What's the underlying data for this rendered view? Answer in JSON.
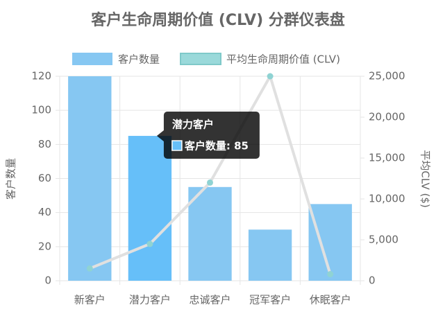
{
  "chart_data": {
    "type": "bar-line",
    "title": "客户生命周期价值 (CLV) 分群仪表盘",
    "categories": [
      "新客户",
      "潜力客户",
      "忠诚客户",
      "冠军客户",
      "休眠客户"
    ],
    "series": [
      {
        "name": "客户数量",
        "type": "bar",
        "color": "#86c7f2",
        "values": [
          120,
          85,
          55,
          30,
          45
        ]
      },
      {
        "name": "平均CLV ($)",
        "legend_name": "平均生命周期价值 (CLV)",
        "type": "line",
        "axis": "y2",
        "color": "#8fd3d3",
        "line_color": "#e0e0e0",
        "values": [
          1500,
          4500,
          12000,
          25000,
          800
        ]
      }
    ],
    "y_label": "客户数量",
    "y2_label": "平均CLV ($)",
    "ylim": [
      0,
      120
    ],
    "yticks": [
      0,
      20,
      40,
      60,
      80,
      100,
      120
    ],
    "y2lim": [
      0,
      25000
    ],
    "y2ticks": [
      0,
      {
        "value": 5000,
        "label": "5,000"
      },
      {
        "value": 10000,
        "label": "10,000"
      },
      {
        "value": 15000,
        "label": "15,000"
      },
      {
        "value": 20000,
        "label": "20,000"
      },
      {
        "value": 25000,
        "label": "25,000"
      }
    ],
    "grid": true,
    "highlight_index": 1,
    "highlight_color": "#66bff9",
    "tooltip": {
      "title": "潜力客户",
      "label": "客户数量: 85"
    }
  }
}
